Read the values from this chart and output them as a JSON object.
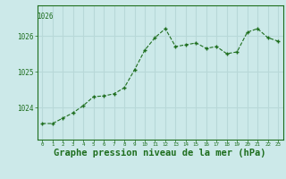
{
  "hours": [
    0,
    1,
    2,
    3,
    4,
    5,
    6,
    7,
    8,
    9,
    10,
    11,
    12,
    13,
    14,
    15,
    16,
    17,
    18,
    19,
    20,
    21,
    22,
    23
  ],
  "pressure": [
    1023.55,
    1023.55,
    1023.7,
    1023.85,
    1024.05,
    1024.3,
    1024.32,
    1024.38,
    1024.55,
    1025.05,
    1025.6,
    1025.95,
    1026.2,
    1025.7,
    1025.75,
    1025.8,
    1025.65,
    1025.7,
    1025.5,
    1025.55,
    1026.1,
    1026.2,
    1025.95,
    1025.85
  ],
  "line_color": "#1e6e1e",
  "marker_color": "#1e6e1e",
  "bg_color": "#cce9e9",
  "grid_color": "#b8d8d8",
  "xlabel": "Graphe pression niveau de la mer (hPa)",
  "xlabel_fontsize": 7.5,
  "xlabel_color": "#1e6e1e",
  "tick_color": "#1e6e1e",
  "ytick_labels": [
    "1026",
    "1025",
    "1024"
  ],
  "ytick_values": [
    1026,
    1025,
    1024
  ],
  "top_label": "1026",
  "ylim_min": 1023.1,
  "ylim_max": 1026.85,
  "xlim_min": -0.5,
  "xlim_max": 23.5
}
